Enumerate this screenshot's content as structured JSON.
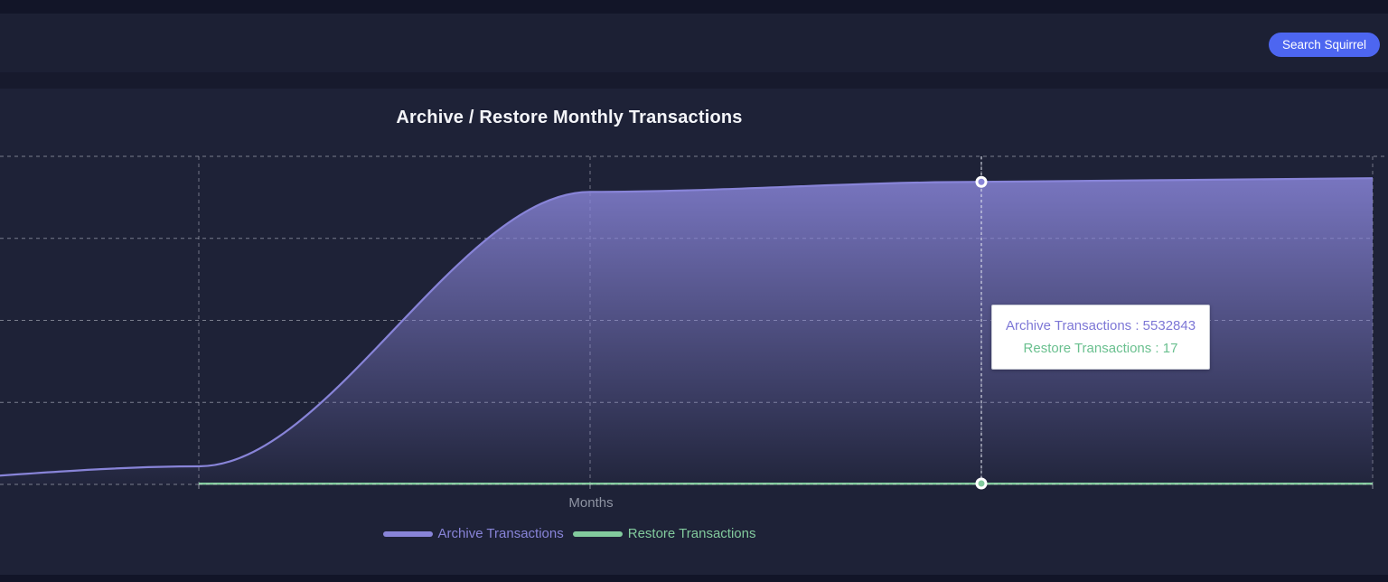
{
  "header": {
    "search_button_label": "Search Squirrel",
    "search_button_color": "#4d66f0"
  },
  "chart": {
    "title": "Archive / Restore Monthly Transactions",
    "xlabel": "Months"
  },
  "tooltip": {
    "rows": [
      {
        "text": "Archive Transactions : 5532843",
        "color": "#7d77d6"
      },
      {
        "text": "Restore Transactions : 17",
        "color": "#6ac08f"
      }
    ]
  },
  "legend": {
    "items": [
      {
        "label": "Archive Transactions",
        "color": "#8884d8"
      },
      {
        "label": "Restore Transactions",
        "color": "#82ca9d"
      }
    ]
  },
  "chart_data": {
    "type": "area",
    "title": "Archive / Restore Monthly Transactions",
    "xlabel": "Months",
    "x_tick_indices": [
      0,
      1,
      2,
      3,
      4
    ],
    "x_tick_labels_visible": false,
    "ylim": [
      0,
      6000000
    ],
    "y_gridline_values": [
      0,
      1500000,
      3000000,
      4500000,
      6000000
    ],
    "grid": "dashed",
    "legend_position": "bottom",
    "series": [
      {
        "name": "Archive Transactions",
        "color": "#8884d8",
        "values": [
          0,
          330000,
          5350000,
          5532843,
          5600000
        ]
      },
      {
        "name": "Restore Transactions",
        "color": "#82ca9d",
        "values": [
          null,
          0,
          0,
          17,
          17
        ]
      }
    ],
    "active_index": 3,
    "active_values": {
      "Archive Transactions": 5532843,
      "Restore Transactions": 17
    }
  }
}
